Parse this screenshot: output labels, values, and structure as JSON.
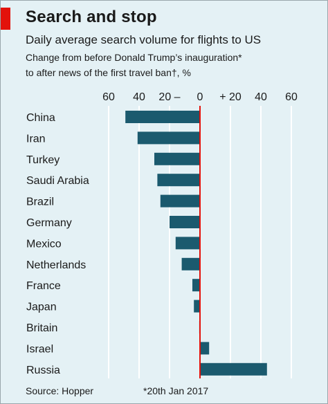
{
  "title": "Search and stop",
  "subtitle": "Daily average search volume for flights to US",
  "description_line1": "Change from before Donald Trump’s inauguration*",
  "description_line2": "to after news of the first travel ban†, %",
  "source": "Source: Hopper",
  "footnote": "*20th Jan 2017",
  "colors": {
    "bar": "#1b5a6e",
    "background": "#e4f1f5",
    "gridline": "#ffffff",
    "zero_line": "#e3120b",
    "brand_red": "#e3120b"
  },
  "chart_data": {
    "type": "bar",
    "orientation": "horizontal",
    "categories": [
      "China",
      "Iran",
      "Turkey",
      "Saudi Arabia",
      "Brazil",
      "Germany",
      "Mexico",
      "Netherlands",
      "France",
      "Japan",
      "Britain",
      "Israel",
      "Russia"
    ],
    "values": [
      -49,
      -41,
      -30,
      -28,
      -26,
      -20,
      -16,
      -12,
      -5,
      -4,
      -0.5,
      6,
      44
    ],
    "xlim": [
      -65,
      65
    ],
    "tick_values": [
      -60,
      -40,
      -20,
      0,
      20,
      40,
      60
    ],
    "tick_labels": [
      "60",
      "40",
      "20 –",
      "0",
      "+ 20",
      "40",
      "60"
    ],
    "grid": true,
    "xlabel": "",
    "ylabel": ""
  }
}
